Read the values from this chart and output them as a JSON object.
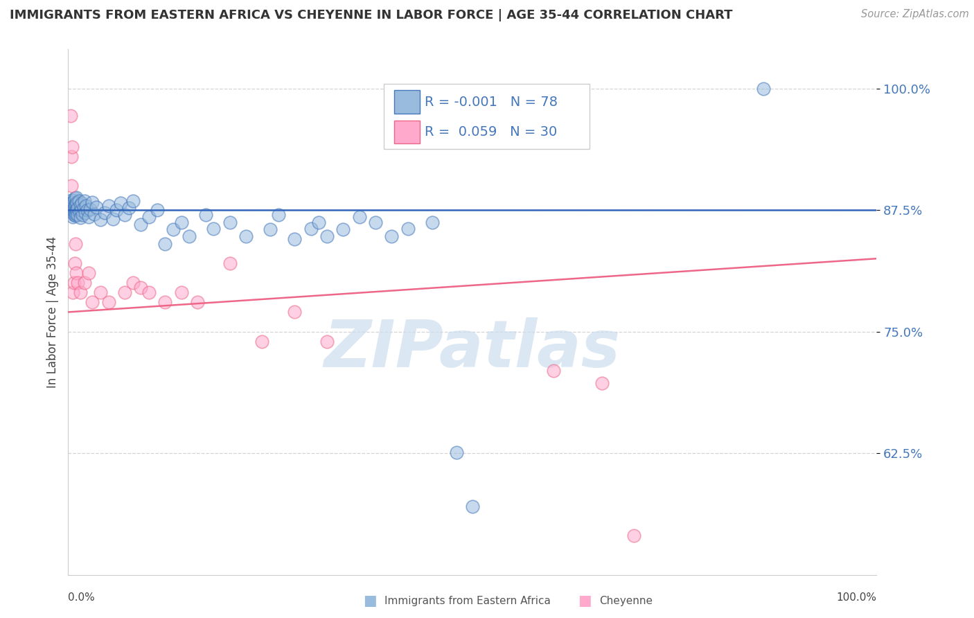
{
  "title": "IMMIGRANTS FROM EASTERN AFRICA VS CHEYENNE IN LABOR FORCE | AGE 35-44 CORRELATION CHART",
  "source": "Source: ZipAtlas.com",
  "ylabel": "In Labor Force | Age 35-44",
  "ytick_labels": [
    "62.5%",
    "75.0%",
    "87.5%",
    "100.0%"
  ],
  "ytick_values": [
    0.625,
    0.75,
    0.875,
    1.0
  ],
  "xlim": [
    0.0,
    1.0
  ],
  "ylim": [
    0.5,
    1.04
  ],
  "legend_label1": "Immigrants from Eastern Africa",
  "legend_label2": "Cheyenne",
  "R1": -0.001,
  "N1": 78,
  "R2": 0.059,
  "N2": 30,
  "blue_fill": "#99BBDD",
  "pink_fill": "#FFAACC",
  "blue_edge": "#4477BB",
  "pink_edge": "#EE6688",
  "blue_line": "#3366BB",
  "pink_line": "#EE6688",
  "blue_scatter_x": [
    0.002,
    0.003,
    0.004,
    0.004,
    0.005,
    0.005,
    0.006,
    0.006,
    0.006,
    0.007,
    0.007,
    0.007,
    0.008,
    0.008,
    0.008,
    0.009,
    0.009,
    0.009,
    0.01,
    0.01,
    0.01,
    0.01,
    0.011,
    0.011,
    0.012,
    0.012,
    0.013,
    0.014,
    0.015,
    0.015,
    0.016,
    0.017,
    0.018,
    0.019,
    0.02,
    0.021,
    0.022,
    0.024,
    0.025,
    0.027,
    0.03,
    0.032,
    0.035,
    0.04,
    0.045,
    0.05,
    0.055,
    0.06,
    0.065,
    0.07,
    0.075,
    0.08,
    0.09,
    0.1,
    0.11,
    0.12,
    0.13,
    0.14,
    0.15,
    0.17,
    0.18,
    0.2,
    0.22,
    0.25,
    0.26,
    0.28,
    0.3,
    0.31,
    0.32,
    0.34,
    0.36,
    0.38,
    0.4,
    0.42,
    0.45,
    0.48,
    0.5,
    0.86
  ],
  "blue_scatter_y": [
    0.878,
    0.882,
    0.876,
    0.885,
    0.872,
    0.88,
    0.868,
    0.875,
    0.883,
    0.87,
    0.877,
    0.885,
    0.872,
    0.879,
    0.887,
    0.874,
    0.881,
    0.869,
    0.876,
    0.883,
    0.871,
    0.888,
    0.875,
    0.882,
    0.87,
    0.877,
    0.884,
    0.873,
    0.88,
    0.867,
    0.875,
    0.882,
    0.87,
    0.877,
    0.884,
    0.872,
    0.879,
    0.875,
    0.868,
    0.876,
    0.883,
    0.871,
    0.878,
    0.865,
    0.872,
    0.879,
    0.866,
    0.875,
    0.882,
    0.87,
    0.877,
    0.884,
    0.86,
    0.868,
    0.875,
    0.84,
    0.855,
    0.862,
    0.848,
    0.87,
    0.856,
    0.862,
    0.848,
    0.855,
    0.87,
    0.845,
    0.856,
    0.862,
    0.848,
    0.855,
    0.868,
    0.862,
    0.848,
    0.856,
    0.862,
    0.626,
    0.57,
    1.0
  ],
  "pink_scatter_x": [
    0.003,
    0.004,
    0.004,
    0.005,
    0.006,
    0.007,
    0.008,
    0.009,
    0.01,
    0.012,
    0.015,
    0.02,
    0.025,
    0.03,
    0.04,
    0.05,
    0.07,
    0.08,
    0.09,
    0.1,
    0.12,
    0.14,
    0.16,
    0.2,
    0.24,
    0.28,
    0.32,
    0.6,
    0.66,
    0.7
  ],
  "pink_scatter_y": [
    0.972,
    0.93,
    0.9,
    0.94,
    0.79,
    0.8,
    0.82,
    0.84,
    0.81,
    0.8,
    0.79,
    0.8,
    0.81,
    0.78,
    0.79,
    0.78,
    0.79,
    0.8,
    0.795,
    0.79,
    0.78,
    0.79,
    0.78,
    0.82,
    0.74,
    0.77,
    0.74,
    0.71,
    0.697,
    0.54
  ],
  "blue_trend_y0": 0.875,
  "blue_trend_y1": 0.875,
  "pink_trend_y0": 0.77,
  "pink_trend_y1": 0.825,
  "watermark_text": "ZIPatlas",
  "watermark_color": "#CCDDEF",
  "background_color": "#FFFFFF",
  "grid_color": "#AAAAAA",
  "grid_style": "--",
  "grid_alpha": 0.5
}
